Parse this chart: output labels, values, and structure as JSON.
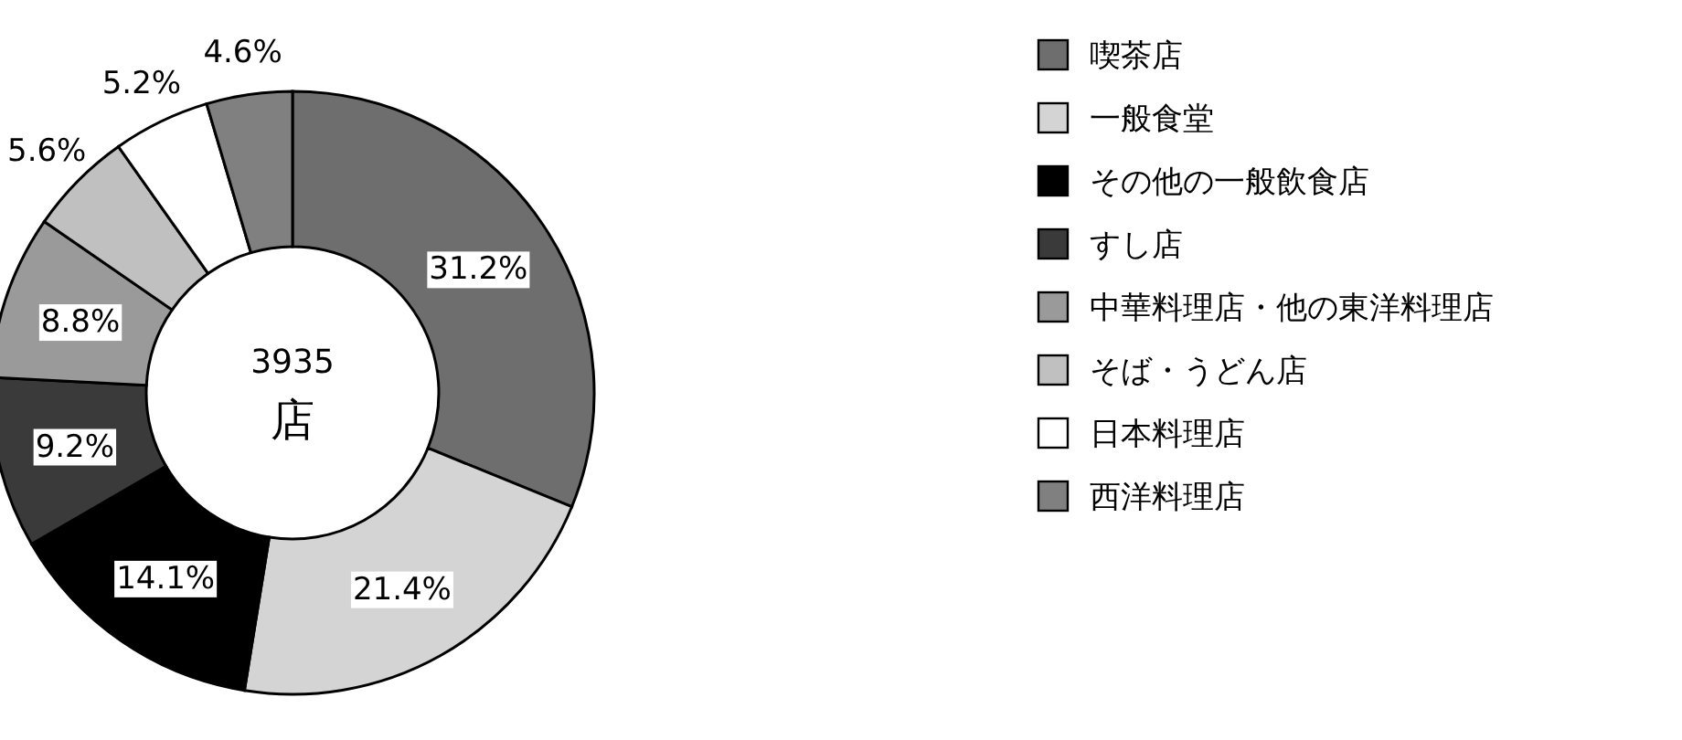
{
  "chart_data": {
    "type": "donut",
    "categories": [
      "喫茶店",
      "一般食堂",
      "その他の一般飲食店",
      "すし店",
      "中華料理店・他の東洋料理店",
      "そば・うどん店",
      "日本料理店",
      "西洋料理店"
    ],
    "values": [
      31.2,
      21.4,
      14.1,
      9.2,
      8.8,
      5.6,
      5.2,
      4.6
    ],
    "value_labels": [
      "31.2%",
      "21.4%",
      "14.1%",
      "9.2%",
      "8.8%",
      "5.6%",
      "5.2%",
      "4.6%"
    ],
    "colors": [
      "#6e6e6e",
      "#d4d4d4",
      "#000000",
      "#3a3a3a",
      "#9a9a9a",
      "#c0c0c0",
      "#ffffff",
      "#808080"
    ],
    "annotations": [
      "3935",
      "店"
    ],
    "legend": "right"
  }
}
